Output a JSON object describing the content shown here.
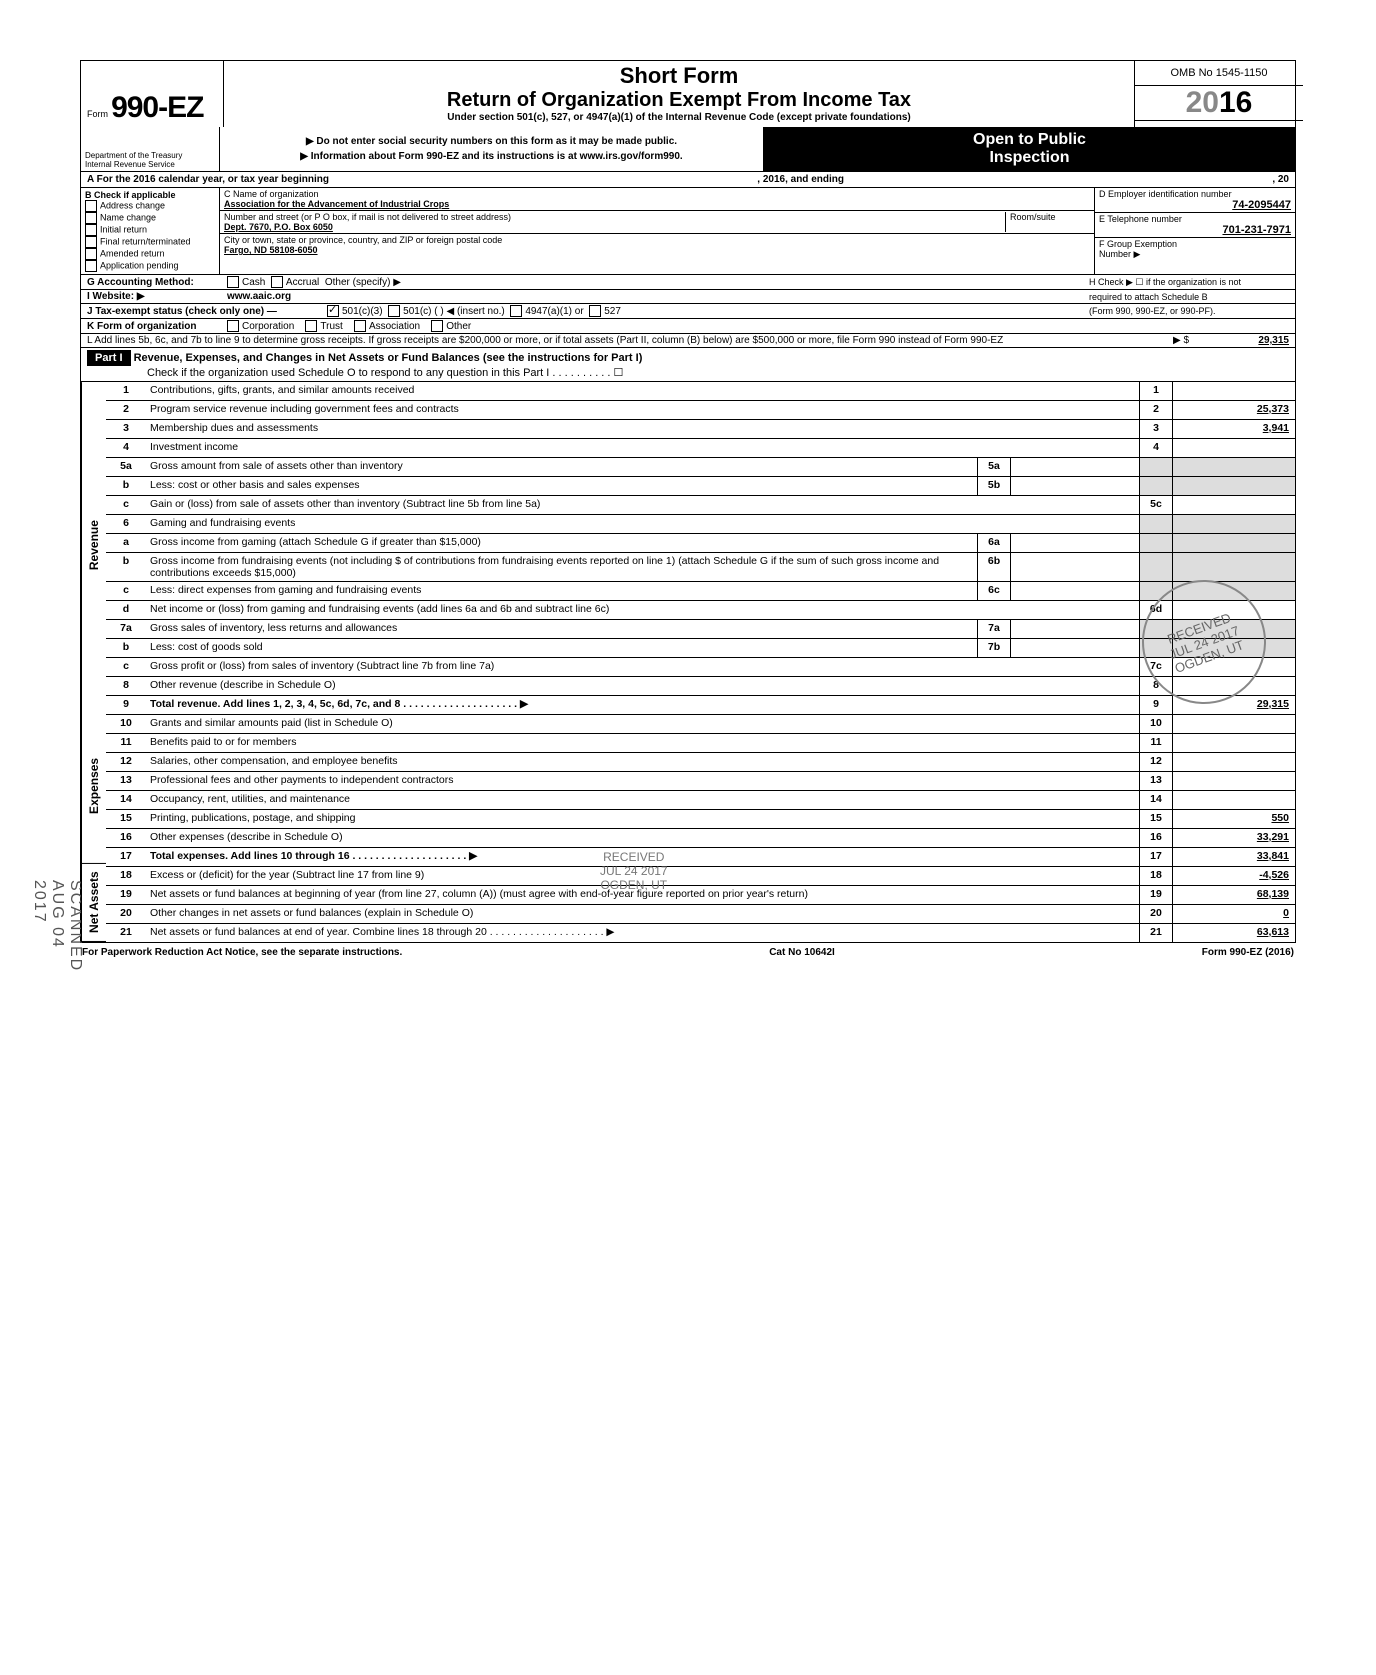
{
  "header": {
    "form_prefix": "Form",
    "form_no": "990-EZ",
    "short": "Short Form",
    "title": "Return of Organization Exempt From Income Tax",
    "under": "Under section 501(c), 527, or 4947(a)(1) of the Internal Revenue Code (except private foundations)",
    "warn1": "▶ Do not enter social security numbers on this form as it may be made public.",
    "warn2": "▶ Information about Form 990-EZ and its instructions is at www.irs.gov/form990.",
    "omb": "OMB No 1545-1150",
    "year_gray": "20",
    "year_bold": "16",
    "open1": "Open to Public",
    "open2": "Inspection",
    "dept1": "Department of the Treasury",
    "dept2": "Internal Revenue Service"
  },
  "A": {
    "text": "A  For the 2016 calendar year, or tax year beginning",
    "mid": ", 2016, and ending",
    "end": ", 20"
  },
  "B": {
    "label": "B  Check if applicable",
    "items": [
      "Address change",
      "Name change",
      "Initial return",
      "Final return/terminated",
      "Amended return",
      "Application pending"
    ]
  },
  "C": {
    "label": "C  Name of organization",
    "name": "Association for the Advancement of Industrial Crops",
    "addr_lbl": "Number and street (or P O  box, if mail is not delivered to street address)",
    "addr": "Dept. 7670, P.O. Box 6050",
    "room_lbl": "Room/suite",
    "city_lbl": "City or town, state or province, country, and ZIP or foreign postal code",
    "city": "Fargo, ND 58108-6050"
  },
  "D": {
    "label": "D Employer identification number",
    "val": "74-2095447"
  },
  "E": {
    "label": "E Telephone number",
    "val": "701-231-7971"
  },
  "F": {
    "label": "F Group Exemption",
    "label2": "Number ▶"
  },
  "G": {
    "label": "G  Accounting Method:",
    "opts": [
      "Cash",
      "Accrual",
      "Other (specify) ▶"
    ]
  },
  "H": {
    "line1": "H  Check ▶ ☐ if the organization is not",
    "line2": "required to attach Schedule B",
    "line3": "(Form 990, 990-EZ, or 990-PF)."
  },
  "I": {
    "label": "I  Website: ▶",
    "val": "www.aaic.org"
  },
  "J": {
    "label": "J  Tax-exempt status (check only one) —",
    "o1": "501(c)(3)",
    "o2": "501(c) (       ) ◀ (insert no.)",
    "o3": "4947(a)(1) or",
    "o4": "527"
  },
  "K": {
    "label": "K  Form of organization",
    "opts": [
      "Corporation",
      "Trust",
      "Association",
      "Other"
    ]
  },
  "L": {
    "text": "L  Add lines 5b, 6c, and 7b to line 9 to determine gross receipts. If gross receipts are $200,000 or more, or if total assets (Part II, column (B) below) are $500,000 or more, file Form 990 instead of Form 990-EZ",
    "arrow": "▶  $",
    "val": "29,315"
  },
  "part1": {
    "hdr": "Part I",
    "title": "Revenue, Expenses, and Changes in Net Assets or Fund Balances (see the instructions for Part I)",
    "sub": "Check if the organization used Schedule O to respond to any question in this Part I . . . . . . . . . . ☐"
  },
  "sides": {
    "rev": "Revenue",
    "exp": "Expenses",
    "na": "Net Assets"
  },
  "lines": [
    {
      "n": "1",
      "d": "Contributions, gifts, grants, and similar amounts received",
      "rn": "1",
      "rv": ""
    },
    {
      "n": "2",
      "d": "Program service revenue including government fees and contracts",
      "rn": "2",
      "rv": "25,373"
    },
    {
      "n": "3",
      "d": "Membership dues and assessments",
      "rn": "3",
      "rv": "3,941"
    },
    {
      "n": "4",
      "d": "Investment income",
      "rn": "4",
      "rv": ""
    },
    {
      "n": "5a",
      "d": "Gross amount from sale of assets other than inventory",
      "mn": "5a",
      "mv": ""
    },
    {
      "n": "b",
      "d": "Less: cost or other basis and sales expenses",
      "mn": "5b",
      "mv": ""
    },
    {
      "n": "c",
      "d": "Gain or (loss) from sale of assets other than inventory (Subtract line 5b from line 5a)",
      "rn": "5c",
      "rv": ""
    },
    {
      "n": "6",
      "d": "Gaming and fundraising events"
    },
    {
      "n": "a",
      "d": "Gross income from gaming (attach Schedule G if greater than $15,000)",
      "mn": "6a",
      "mv": ""
    },
    {
      "n": "b",
      "d": "Gross income from fundraising events (not including  $                       of contributions from fundraising events reported on line 1) (attach Schedule G if the sum of such gross income and contributions exceeds $15,000)",
      "mn": "6b",
      "mv": ""
    },
    {
      "n": "c",
      "d": "Less: direct expenses from gaming and fundraising events",
      "mn": "6c",
      "mv": ""
    },
    {
      "n": "d",
      "d": "Net income or (loss) from gaming and fundraising events (add lines 6a and 6b and subtract line 6c)",
      "rn": "6d",
      "rv": ""
    },
    {
      "n": "7a",
      "d": "Gross sales of inventory, less returns and allowances",
      "mn": "7a",
      "mv": ""
    },
    {
      "n": "b",
      "d": "Less: cost of goods sold",
      "mn": "7b",
      "mv": ""
    },
    {
      "n": "c",
      "d": "Gross profit or (loss) from sales of inventory (Subtract line 7b from line 7a)",
      "rn": "7c",
      "rv": ""
    },
    {
      "n": "8",
      "d": "Other revenue (describe in Schedule O)",
      "rn": "8",
      "rv": ""
    },
    {
      "n": "9",
      "d": "Total revenue. Add lines 1, 2, 3, 4, 5c, 6d, 7c, and 8",
      "rn": "9",
      "rv": "29,315",
      "bold": true,
      "arrow": true
    },
    {
      "n": "10",
      "d": "Grants and similar amounts paid (list in Schedule O)",
      "rn": "10",
      "rv": ""
    },
    {
      "n": "11",
      "d": "Benefits paid to or for members",
      "rn": "11",
      "rv": ""
    },
    {
      "n": "12",
      "d": "Salaries, other compensation, and employee benefits",
      "rn": "12",
      "rv": ""
    },
    {
      "n": "13",
      "d": "Professional fees and other payments to independent contractors",
      "rn": "13",
      "rv": ""
    },
    {
      "n": "14",
      "d": "Occupancy, rent, utilities, and maintenance",
      "rn": "14",
      "rv": ""
    },
    {
      "n": "15",
      "d": "Printing, publications, postage, and shipping",
      "rn": "15",
      "rv": "550"
    },
    {
      "n": "16",
      "d": "Other expenses (describe in Schedule O)",
      "rn": "16",
      "rv": "33,291"
    },
    {
      "n": "17",
      "d": "Total expenses. Add lines 10 through 16",
      "rn": "17",
      "rv": "33,841",
      "bold": true,
      "arrow": true
    },
    {
      "n": "18",
      "d": "Excess or (deficit) for the year (Subtract line 17 from line 9)",
      "rn": "18",
      "rv": "-4,526"
    },
    {
      "n": "19",
      "d": "Net assets or fund balances at beginning of year (from line 27, column (A)) (must agree with end-of-year figure reported on prior year's return)",
      "rn": "19",
      "rv": "68,139"
    },
    {
      "n": "20",
      "d": "Other changes in net assets or fund balances (explain in Schedule O)",
      "rn": "20",
      "rv": "0"
    },
    {
      "n": "21",
      "d": "Net assets or fund balances at end of year. Combine lines 18 through 20",
      "rn": "21",
      "rv": "63,613",
      "arrow": true
    }
  ],
  "footer": {
    "left": "For Paperwork Reduction Act Notice, see the separate instructions.",
    "mid": "Cat No 10642I",
    "right": "Form 990-EZ (2016)"
  },
  "stamps": {
    "s1": "RECEIVED\nJUL 24 2017\nOGDEN, UT",
    "s2a": "RECEIVED",
    "s2b": "JUL 24 2017",
    "s2c": "OGDEN, UT",
    "side": "SCANNED  AUG 04 2017"
  }
}
